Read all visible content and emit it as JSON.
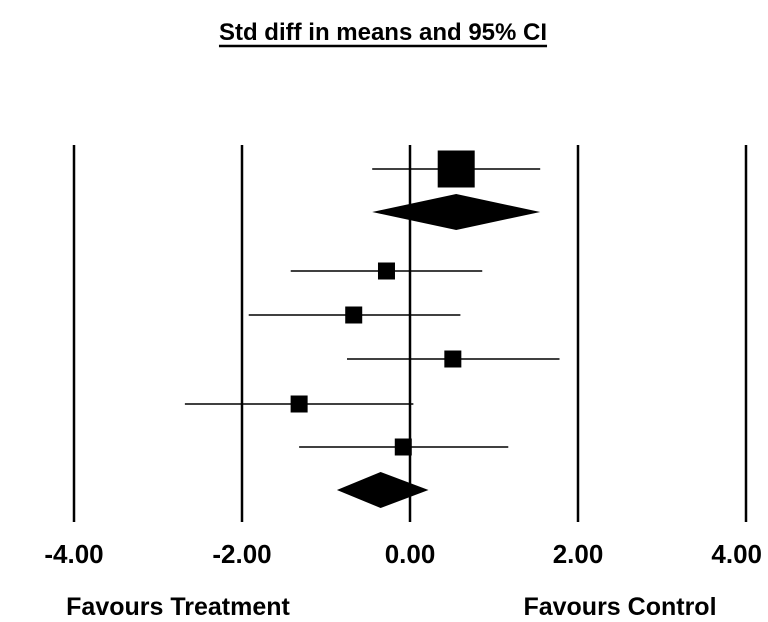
{
  "chart_data": {
    "type": "forest",
    "title": "Std diff in means and 95% CI",
    "xlim": [
      -4,
      4
    ],
    "ticks": [
      {
        "value": -4,
        "label": "-4.00"
      },
      {
        "value": -2,
        "label": "-2.00"
      },
      {
        "value": 0,
        "label": "0.00"
      },
      {
        "value": 2,
        "label": "2.00"
      },
      {
        "value": 4,
        "label": "4.00"
      }
    ],
    "reference_lines": [
      -4,
      -2,
      0,
      2,
      4
    ],
    "favours": {
      "left": "Favours Treatment",
      "right": "Favours Control"
    },
    "rows": [
      {
        "kind": "study",
        "estimate": 0.55,
        "lower": -0.45,
        "upper": 1.55,
        "weight": "large"
      },
      {
        "kind": "summary",
        "estimate": 0.55,
        "lower": -0.45,
        "upper": 1.55
      },
      {
        "kind": "study",
        "estimate": -0.28,
        "lower": -1.42,
        "upper": 0.86,
        "weight": "small"
      },
      {
        "kind": "study",
        "estimate": -0.67,
        "lower": -1.92,
        "upper": 0.6,
        "weight": "small"
      },
      {
        "kind": "study",
        "estimate": 0.51,
        "lower": -0.75,
        "upper": 1.78,
        "weight": "small"
      },
      {
        "kind": "study",
        "estimate": -1.32,
        "lower": -2.68,
        "upper": 0.04,
        "weight": "small"
      },
      {
        "kind": "study",
        "estimate": -0.08,
        "lower": -1.32,
        "upper": 1.17,
        "weight": "small"
      },
      {
        "kind": "summary",
        "estimate": -0.35,
        "lower": -0.87,
        "upper": 0.22
      }
    ]
  }
}
